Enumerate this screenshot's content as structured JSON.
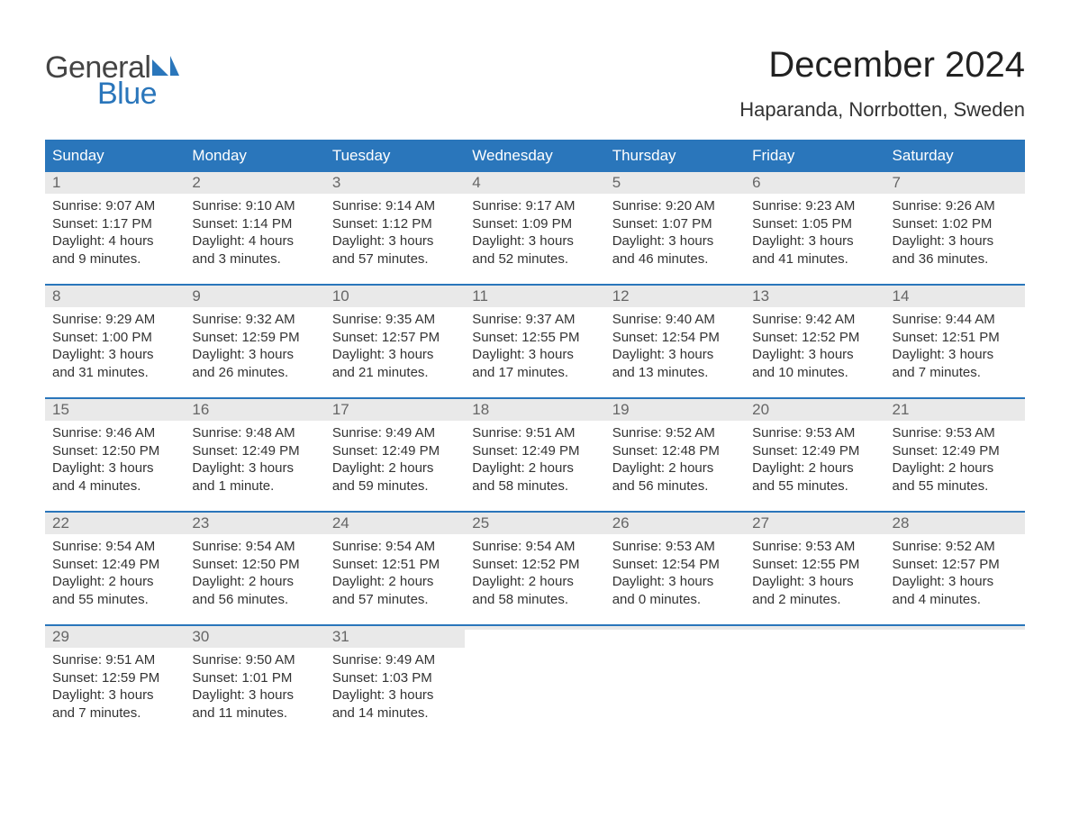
{
  "logo": {
    "general": "General",
    "blue": "Blue",
    "sail_color": "#2a76bb"
  },
  "title": "December 2024",
  "location": "Haparanda, Norrbotten, Sweden",
  "colors": {
    "header_bg": "#2a76bb",
    "daynum_bg": "#e9e9e9",
    "text": "#333333",
    "daynum_text": "#666666",
    "page_bg": "#ffffff"
  },
  "fonts": {
    "title_size_pt": 40,
    "location_size_pt": 22,
    "weekday_size_pt": 17,
    "body_size_pt": 15
  },
  "weekdays": [
    "Sunday",
    "Monday",
    "Tuesday",
    "Wednesday",
    "Thursday",
    "Friday",
    "Saturday"
  ],
  "weeks": [
    [
      {
        "n": "1",
        "sunrise": "9:07 AM",
        "sunset": "1:17 PM",
        "dl1": "4 hours",
        "dl2": "and 9 minutes."
      },
      {
        "n": "2",
        "sunrise": "9:10 AM",
        "sunset": "1:14 PM",
        "dl1": "4 hours",
        "dl2": "and 3 minutes."
      },
      {
        "n": "3",
        "sunrise": "9:14 AM",
        "sunset": "1:12 PM",
        "dl1": "3 hours",
        "dl2": "and 57 minutes."
      },
      {
        "n": "4",
        "sunrise": "9:17 AM",
        "sunset": "1:09 PM",
        "dl1": "3 hours",
        "dl2": "and 52 minutes."
      },
      {
        "n": "5",
        "sunrise": "9:20 AM",
        "sunset": "1:07 PM",
        "dl1": "3 hours",
        "dl2": "and 46 minutes."
      },
      {
        "n": "6",
        "sunrise": "9:23 AM",
        "sunset": "1:05 PM",
        "dl1": "3 hours",
        "dl2": "and 41 minutes."
      },
      {
        "n": "7",
        "sunrise": "9:26 AM",
        "sunset": "1:02 PM",
        "dl1": "3 hours",
        "dl2": "and 36 minutes."
      }
    ],
    [
      {
        "n": "8",
        "sunrise": "9:29 AM",
        "sunset": "1:00 PM",
        "dl1": "3 hours",
        "dl2": "and 31 minutes."
      },
      {
        "n": "9",
        "sunrise": "9:32 AM",
        "sunset": "12:59 PM",
        "dl1": "3 hours",
        "dl2": "and 26 minutes."
      },
      {
        "n": "10",
        "sunrise": "9:35 AM",
        "sunset": "12:57 PM",
        "dl1": "3 hours",
        "dl2": "and 21 minutes."
      },
      {
        "n": "11",
        "sunrise": "9:37 AM",
        "sunset": "12:55 PM",
        "dl1": "3 hours",
        "dl2": "and 17 minutes."
      },
      {
        "n": "12",
        "sunrise": "9:40 AM",
        "sunset": "12:54 PM",
        "dl1": "3 hours",
        "dl2": "and 13 minutes."
      },
      {
        "n": "13",
        "sunrise": "9:42 AM",
        "sunset": "12:52 PM",
        "dl1": "3 hours",
        "dl2": "and 10 minutes."
      },
      {
        "n": "14",
        "sunrise": "9:44 AM",
        "sunset": "12:51 PM",
        "dl1": "3 hours",
        "dl2": "and 7 minutes."
      }
    ],
    [
      {
        "n": "15",
        "sunrise": "9:46 AM",
        "sunset": "12:50 PM",
        "dl1": "3 hours",
        "dl2": "and 4 minutes."
      },
      {
        "n": "16",
        "sunrise": "9:48 AM",
        "sunset": "12:49 PM",
        "dl1": "3 hours",
        "dl2": "and 1 minute."
      },
      {
        "n": "17",
        "sunrise": "9:49 AM",
        "sunset": "12:49 PM",
        "dl1": "2 hours",
        "dl2": "and 59 minutes."
      },
      {
        "n": "18",
        "sunrise": "9:51 AM",
        "sunset": "12:49 PM",
        "dl1": "2 hours",
        "dl2": "and 58 minutes."
      },
      {
        "n": "19",
        "sunrise": "9:52 AM",
        "sunset": "12:48 PM",
        "dl1": "2 hours",
        "dl2": "and 56 minutes."
      },
      {
        "n": "20",
        "sunrise": "9:53 AM",
        "sunset": "12:49 PM",
        "dl1": "2 hours",
        "dl2": "and 55 minutes."
      },
      {
        "n": "21",
        "sunrise": "9:53 AM",
        "sunset": "12:49 PM",
        "dl1": "2 hours",
        "dl2": "and 55 minutes."
      }
    ],
    [
      {
        "n": "22",
        "sunrise": "9:54 AM",
        "sunset": "12:49 PM",
        "dl1": "2 hours",
        "dl2": "and 55 minutes."
      },
      {
        "n": "23",
        "sunrise": "9:54 AM",
        "sunset": "12:50 PM",
        "dl1": "2 hours",
        "dl2": "and 56 minutes."
      },
      {
        "n": "24",
        "sunrise": "9:54 AM",
        "sunset": "12:51 PM",
        "dl1": "2 hours",
        "dl2": "and 57 minutes."
      },
      {
        "n": "25",
        "sunrise": "9:54 AM",
        "sunset": "12:52 PM",
        "dl1": "2 hours",
        "dl2": "and 58 minutes."
      },
      {
        "n": "26",
        "sunrise": "9:53 AM",
        "sunset": "12:54 PM",
        "dl1": "3 hours",
        "dl2": "and 0 minutes."
      },
      {
        "n": "27",
        "sunrise": "9:53 AM",
        "sunset": "12:55 PM",
        "dl1": "3 hours",
        "dl2": "and 2 minutes."
      },
      {
        "n": "28",
        "sunrise": "9:52 AM",
        "sunset": "12:57 PM",
        "dl1": "3 hours",
        "dl2": "and 4 minutes."
      }
    ],
    [
      {
        "n": "29",
        "sunrise": "9:51 AM",
        "sunset": "12:59 PM",
        "dl1": "3 hours",
        "dl2": "and 7 minutes."
      },
      {
        "n": "30",
        "sunrise": "9:50 AM",
        "sunset": "1:01 PM",
        "dl1": "3 hours",
        "dl2": "and 11 minutes."
      },
      {
        "n": "31",
        "sunrise": "9:49 AM",
        "sunset": "1:03 PM",
        "dl1": "3 hours",
        "dl2": "and 14 minutes."
      },
      {
        "n": "",
        "empty": true
      },
      {
        "n": "",
        "empty": true
      },
      {
        "n": "",
        "empty": true
      },
      {
        "n": "",
        "empty": true
      }
    ]
  ],
  "labels": {
    "sunrise": "Sunrise: ",
    "sunset": "Sunset: ",
    "daylight": "Daylight: "
  }
}
